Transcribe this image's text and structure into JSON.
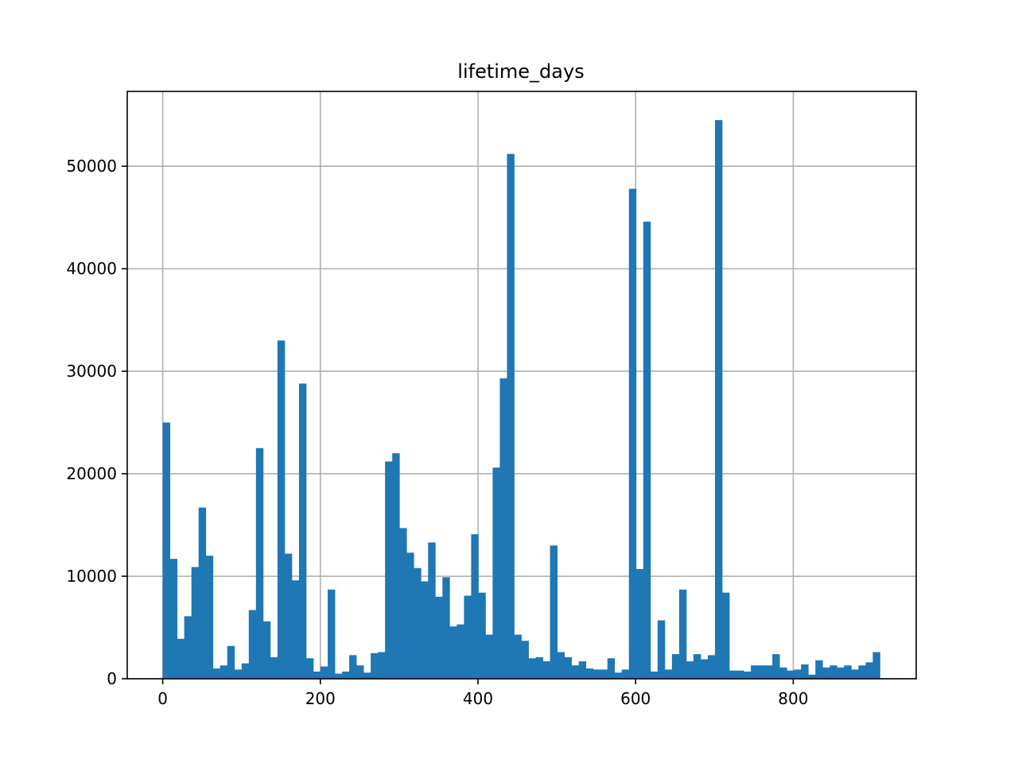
{
  "chart_data": {
    "type": "bar",
    "title": "lifetime_days",
    "xlabel": "",
    "ylabel": "",
    "bin_start": 0,
    "bin_width": 9.1,
    "values": [
      25000,
      11700,
      3900,
      6100,
      10900,
      16700,
      12000,
      1000,
      1300,
      3200,
      900,
      1500,
      6700,
      22500,
      5600,
      2100,
      33000,
      12200,
      9600,
      28800,
      2000,
      700,
      1200,
      8700,
      500,
      700,
      2300,
      1300,
      600,
      2500,
      2600,
      21200,
      22000,
      14700,
      12300,
      10800,
      9500,
      13300,
      8000,
      9900,
      5100,
      5300,
      8100,
      14100,
      8400,
      4300,
      20600,
      29300,
      51200,
      4300,
      3700,
      2000,
      2100,
      1700,
      13000,
      2600,
      2100,
      1300,
      1700,
      1000,
      900,
      900,
      2000,
      600,
      900,
      47800,
      10700,
      44600,
      700,
      5700,
      900,
      2400,
      8700,
      1700,
      2400,
      1900,
      2300,
      54500,
      8400,
      800,
      800,
      700,
      1300,
      1300,
      1300,
      2400,
      1100,
      800,
      900,
      1400,
      400,
      1800,
      1100,
      1300,
      1100,
      1300,
      900,
      1300,
      1600,
      2600
    ],
    "xlim": [
      -45,
      956
    ],
    "ylim": [
      0,
      57300
    ],
    "xticks": [
      0,
      200,
      400,
      600,
      800
    ],
    "yticks": [
      0,
      10000,
      20000,
      30000,
      40000,
      50000
    ],
    "grid": true,
    "colors": {
      "bar": "#1f77b4",
      "grid": "#b0b0b0",
      "axes": "#000000"
    }
  }
}
